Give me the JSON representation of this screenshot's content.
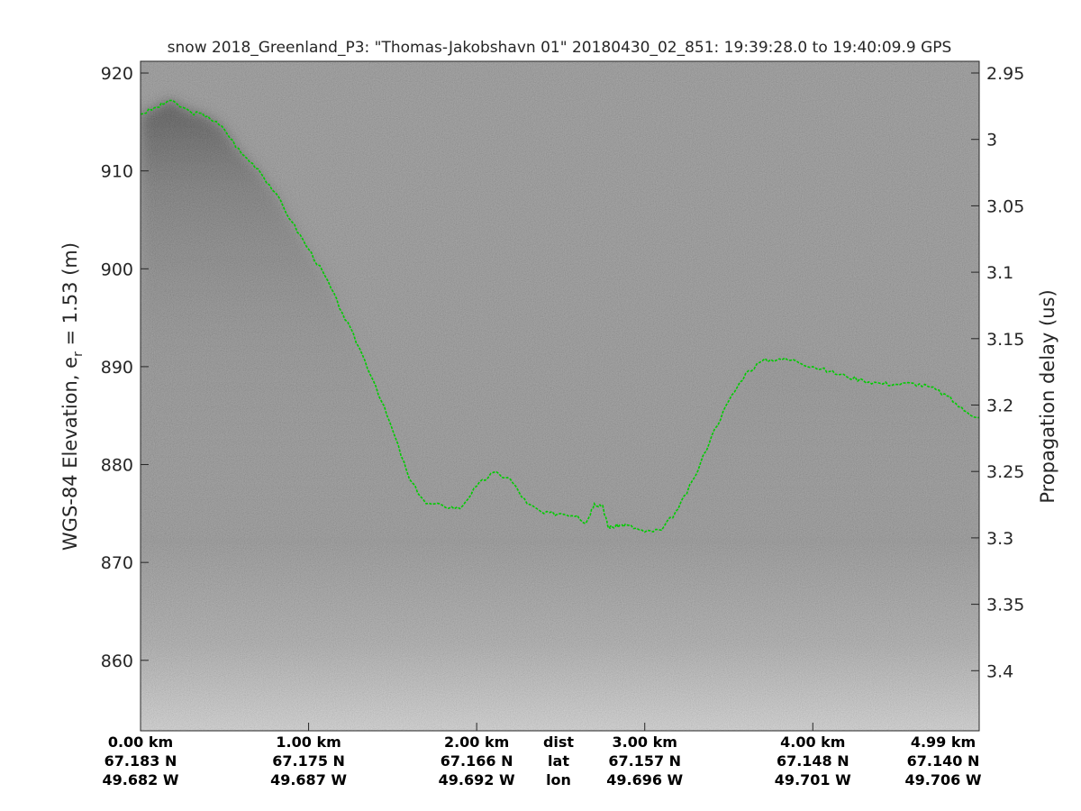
{
  "chart_data": {
    "type": "line",
    "title": "snow 2018_Greenland_P3: \"Thomas-Jakobshavn 01\"  20180430_02_851: 19:39:28.0 to 19:40:09.9 GPS",
    "ylabel_left_main": "WGS-84 Elevation, e",
    "ylabel_left_sub": "r",
    "ylabel_left_tail": " = 1.53 (m)",
    "ylabel_right": "Propagation delay (us)",
    "x_range_km": [
      0,
      4.99
    ],
    "y_range_m": [
      852.8,
      921.2
    ],
    "y_ticks_left": [
      "920",
      "910",
      "900",
      "890",
      "880",
      "870",
      "860"
    ],
    "y_ticks_right": [
      "2.95",
      "3",
      "3.05",
      "3.1",
      "3.15",
      "3.2",
      "3.25",
      "3.3",
      "3.35",
      "3.4"
    ],
    "x_rows": {
      "dist": [
        "0.00 km",
        "1.00 km",
        "2.00 km",
        "3.00 km",
        "4.00 km",
        "4.99 km"
      ],
      "lat": [
        "67.183 N",
        "67.175 N",
        "67.166 N",
        "67.157 N",
        "67.148 N",
        "67.140 N"
      ],
      "lon": [
        "49.682 W",
        "49.687 W",
        "49.692 W",
        "49.696 W",
        "49.701 W",
        "49.706 W"
      ],
      "row_labels": [
        "dist",
        "lat",
        "lon"
      ]
    },
    "series": [
      {
        "color": "#00cc00",
        "x": [
          0.0,
          0.1,
          0.17,
          0.3,
          0.4,
          0.5,
          0.6,
          0.7,
          0.8,
          0.9,
          1.0,
          1.1,
          1.2,
          1.3,
          1.4,
          1.5,
          1.6,
          1.7,
          1.8,
          1.9,
          2.0,
          2.1,
          2.2,
          2.3,
          2.4,
          2.5,
          2.6,
          2.65,
          2.7,
          2.75,
          2.78,
          2.8,
          2.85,
          2.9,
          3.0,
          3.1,
          3.2,
          3.3,
          3.4,
          3.5,
          3.6,
          3.7,
          3.8,
          3.9,
          4.0,
          4.1,
          4.2,
          4.3,
          4.4,
          4.5,
          4.6,
          4.7,
          4.8,
          4.9,
          4.99
        ],
        "y": [
          915.8,
          916.5,
          917.2,
          916.0,
          915.6,
          914.2,
          911.8,
          910.2,
          907.8,
          904.8,
          902.0,
          899.2,
          895.5,
          892.0,
          888.0,
          883.5,
          878.5,
          876.0,
          875.8,
          875.5,
          877.8,
          879.2,
          878.5,
          876.0,
          875.0,
          875.0,
          874.8,
          874.0,
          876.0,
          875.8,
          873.7,
          873.6,
          873.8,
          873.8,
          873.1,
          873.3,
          875.5,
          878.8,
          883.0,
          886.5,
          889.3,
          890.6,
          890.8,
          890.6,
          890.0,
          889.5,
          889.0,
          888.6,
          888.3,
          888.2,
          888.3,
          887.9,
          887.0,
          885.5,
          884.8
        ]
      }
    ]
  }
}
